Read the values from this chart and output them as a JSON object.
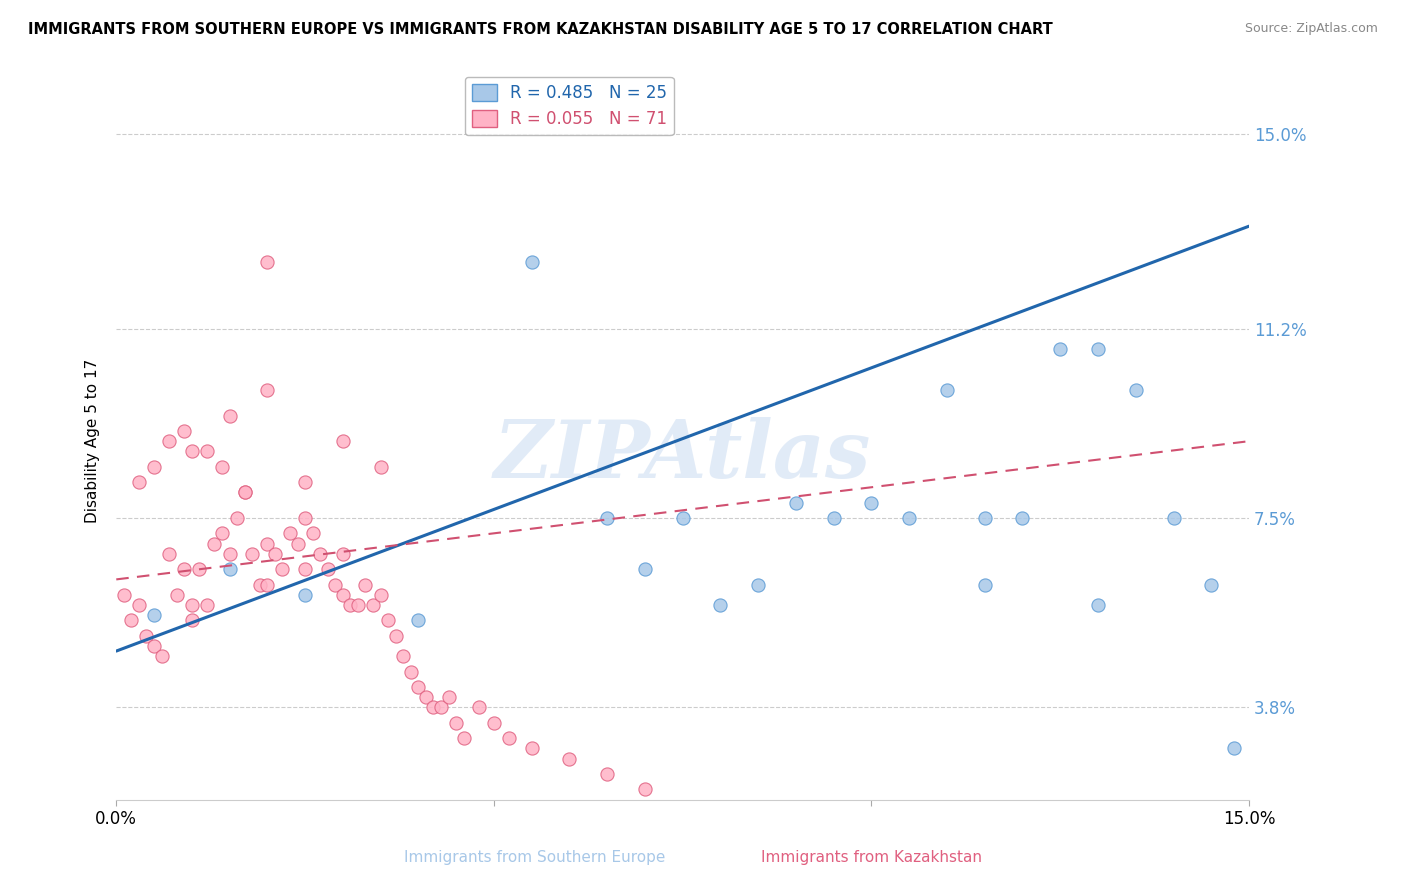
{
  "title": "IMMIGRANTS FROM SOUTHERN EUROPE VS IMMIGRANTS FROM KAZAKHSTAN DISABILITY AGE 5 TO 17 CORRELATION CHART",
  "source": "Source: ZipAtlas.com",
  "xlabel_blue": "Immigrants from Southern Europe",
  "xlabel_pink": "Immigrants from Kazakhstan",
  "ylabel": "Disability Age 5 to 17",
  "r_blue": 0.485,
  "n_blue": 25,
  "r_pink": 0.055,
  "n_pink": 71,
  "xlim": [
    0.0,
    0.15
  ],
  "ylim": [
    0.02,
    0.16
  ],
  "yticks": [
    0.038,
    0.075,
    0.112,
    0.15
  ],
  "ytick_labels": [
    "3.8%",
    "7.5%",
    "11.2%",
    "15.0%"
  ],
  "right_ytick_color": "#5b9bd5",
  "grid_color": "#cccccc",
  "blue_scatter_color": "#a8c8e8",
  "blue_edge_color": "#5b9bd5",
  "pink_scatter_color": "#ffb3c6",
  "pink_edge_color": "#e06080",
  "blue_line_color": "#2166ac",
  "pink_line_color": "#d05070",
  "watermark_color": "#c5d8f0",
  "watermark": "ZIPAtlas",
  "legend_r_blue_color": "#2166ac",
  "legend_r_pink_color": "#d05070",
  "blue_scatter_x": [
    0.005,
    0.015,
    0.025,
    0.04,
    0.055,
    0.065,
    0.07,
    0.075,
    0.08,
    0.085,
    0.09,
    0.095,
    0.1,
    0.105,
    0.11,
    0.115,
    0.115,
    0.12,
    0.125,
    0.13,
    0.135,
    0.14,
    0.145,
    0.148,
    0.13
  ],
  "blue_scatter_y": [
    0.056,
    0.065,
    0.06,
    0.055,
    0.125,
    0.075,
    0.065,
    0.075,
    0.058,
    0.062,
    0.078,
    0.075,
    0.078,
    0.075,
    0.1,
    0.075,
    0.062,
    0.075,
    0.108,
    0.108,
    0.1,
    0.075,
    0.062,
    0.03,
    0.058
  ],
  "pink_scatter_x": [
    0.001,
    0.002,
    0.003,
    0.004,
    0.005,
    0.006,
    0.007,
    0.008,
    0.009,
    0.01,
    0.01,
    0.011,
    0.012,
    0.013,
    0.014,
    0.015,
    0.016,
    0.017,
    0.018,
    0.019,
    0.02,
    0.02,
    0.021,
    0.022,
    0.023,
    0.024,
    0.025,
    0.025,
    0.026,
    0.027,
    0.028,
    0.029,
    0.03,
    0.03,
    0.031,
    0.032,
    0.033,
    0.034,
    0.035,
    0.036,
    0.037,
    0.038,
    0.039,
    0.04,
    0.041,
    0.042,
    0.043,
    0.044,
    0.045,
    0.046,
    0.048,
    0.05,
    0.052,
    0.055,
    0.06,
    0.065,
    0.07,
    0.01,
    0.015,
    0.02,
    0.003,
    0.005,
    0.007,
    0.009,
    0.012,
    0.014,
    0.017,
    0.02,
    0.025,
    0.03,
    0.035
  ],
  "pink_scatter_y": [
    0.06,
    0.055,
    0.058,
    0.052,
    0.05,
    0.048,
    0.068,
    0.06,
    0.065,
    0.058,
    0.055,
    0.065,
    0.058,
    0.07,
    0.072,
    0.068,
    0.075,
    0.08,
    0.068,
    0.062,
    0.07,
    0.062,
    0.068,
    0.065,
    0.072,
    0.07,
    0.075,
    0.065,
    0.072,
    0.068,
    0.065,
    0.062,
    0.068,
    0.06,
    0.058,
    0.058,
    0.062,
    0.058,
    0.06,
    0.055,
    0.052,
    0.048,
    0.045,
    0.042,
    0.04,
    0.038,
    0.038,
    0.04,
    0.035,
    0.032,
    0.038,
    0.035,
    0.032,
    0.03,
    0.028,
    0.025,
    0.022,
    0.088,
    0.095,
    0.1,
    0.082,
    0.085,
    0.09,
    0.092,
    0.088,
    0.085,
    0.08,
    0.125,
    0.082,
    0.09,
    0.085
  ],
  "blue_line_x0": 0.0,
  "blue_line_y0": 0.049,
  "blue_line_x1": 0.15,
  "blue_line_y1": 0.132,
  "pink_line_x0": 0.0,
  "pink_line_y0": 0.063,
  "pink_line_x1": 0.15,
  "pink_line_y1": 0.09
}
